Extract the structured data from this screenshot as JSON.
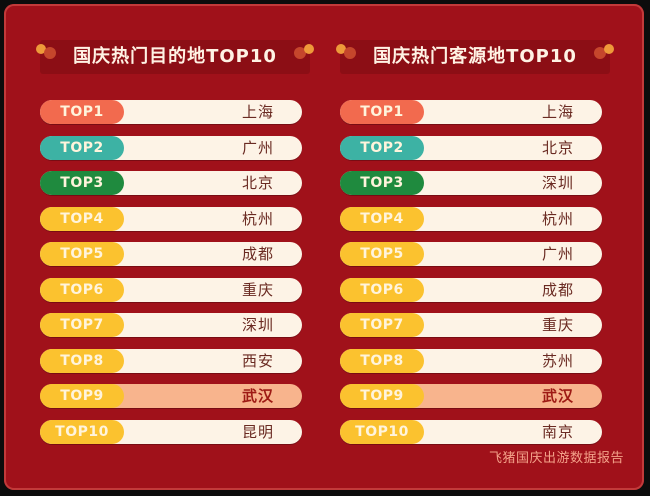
{
  "colors": {
    "background": "#a0111a",
    "top1": "#f26a4e",
    "top2": "#3db2a4",
    "top3": "#1f8a3e",
    "other": "#fbc22f",
    "highlight_row": "#f8b48d",
    "row": "#fdf3e6"
  },
  "left": {
    "title": "国庆热门目的地TOP10",
    "items": [
      {
        "rank": "TOP1",
        "city": "上海"
      },
      {
        "rank": "TOP2",
        "city": "广州"
      },
      {
        "rank": "TOP3",
        "city": "北京"
      },
      {
        "rank": "TOP4",
        "city": "杭州"
      },
      {
        "rank": "TOP5",
        "city": "成都"
      },
      {
        "rank": "TOP6",
        "city": "重庆"
      },
      {
        "rank": "TOP7",
        "city": "深圳"
      },
      {
        "rank": "TOP8",
        "city": "西安"
      },
      {
        "rank": "TOP9",
        "city": "武汉"
      },
      {
        "rank": "TOP10",
        "city": "昆明"
      }
    ]
  },
  "right": {
    "title": "国庆热门客源地TOP10",
    "items": [
      {
        "rank": "TOP1",
        "city": "上海"
      },
      {
        "rank": "TOP2",
        "city": "北京"
      },
      {
        "rank": "TOP3",
        "city": "深圳"
      },
      {
        "rank": "TOP4",
        "city": "杭州"
      },
      {
        "rank": "TOP5",
        "city": "广州"
      },
      {
        "rank": "TOP6",
        "city": "成都"
      },
      {
        "rank": "TOP7",
        "city": "重庆"
      },
      {
        "rank": "TOP8",
        "city": "苏州"
      },
      {
        "rank": "TOP9",
        "city": "武汉"
      },
      {
        "rank": "TOP10",
        "city": "南京"
      }
    ]
  },
  "source": "飞猪国庆出游数据报告"
}
